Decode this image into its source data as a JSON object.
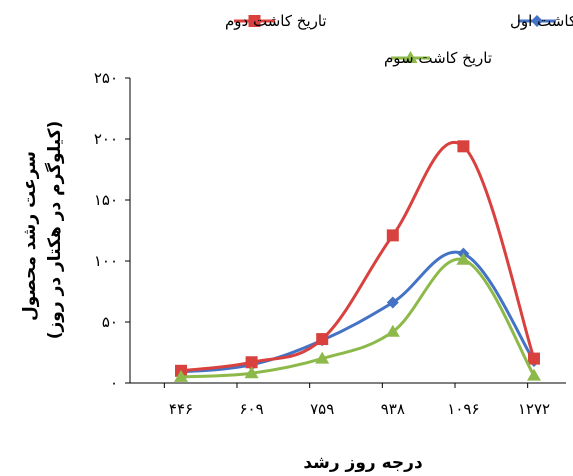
{
  "chart_data": {
    "type": "line",
    "categories": [
      "۴۴۶",
      "۶۰۹",
      "۷۵۹",
      "۹۳۸",
      "۱۰۹۶",
      "۱۲۷۲"
    ],
    "series": [
      {
        "name": "تاریخ کاشت اول",
        "color": "#4472C4",
        "marker": "diamond",
        "values": [
          9,
          15,
          35,
          66,
          106,
          18
        ]
      },
      {
        "name": "تاریخ کاشت دوم",
        "color": "#D9413E",
        "marker": "square",
        "values": [
          10,
          17,
          36,
          121,
          194,
          20
        ]
      },
      {
        "name": "تاریخ کاشت سوم",
        "color": "#8DB94A",
        "marker": "triangle",
        "values": [
          5,
          8,
          20,
          42,
          101,
          6
        ]
      }
    ],
    "yticks": [
      "۰",
      "۵۰",
      "۱۰۰",
      "۱۵۰",
      "۲۰۰",
      "۲۵۰"
    ],
    "ytick_values": [
      0,
      50,
      100,
      150,
      200,
      250
    ],
    "ylim": [
      0,
      250
    ],
    "xlabel": "درجه روز رشد",
    "ylabel_line1": "سرعت رشد محصول",
    "ylabel_line2": "(کیلوگرم در هکتار در روز)",
    "grid": false,
    "legend_position": "top"
  }
}
